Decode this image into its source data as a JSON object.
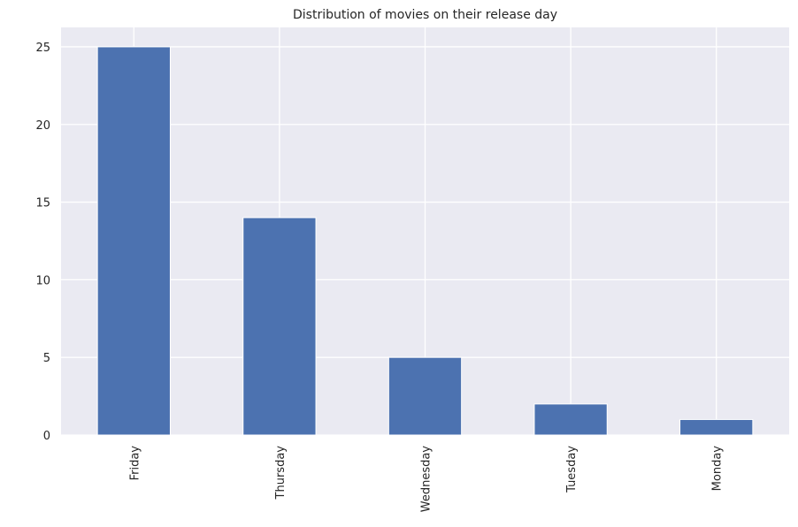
{
  "chart_data": {
    "type": "bar",
    "title": "Distribution of movies on their release day",
    "xlabel": "",
    "ylabel": "",
    "categories": [
      "Friday",
      "Thursday",
      "Wednesday",
      "Tuesday",
      "Monday"
    ],
    "values": [
      25,
      14,
      5,
      2,
      1
    ],
    "ylim": [
      0,
      26.25
    ],
    "yticks": [
      0,
      5,
      10,
      15,
      20,
      25
    ],
    "grid": true,
    "bar_color": "#4c72b0",
    "background_color": "#eaeaf2",
    "grid_color": "#ffffff"
  }
}
